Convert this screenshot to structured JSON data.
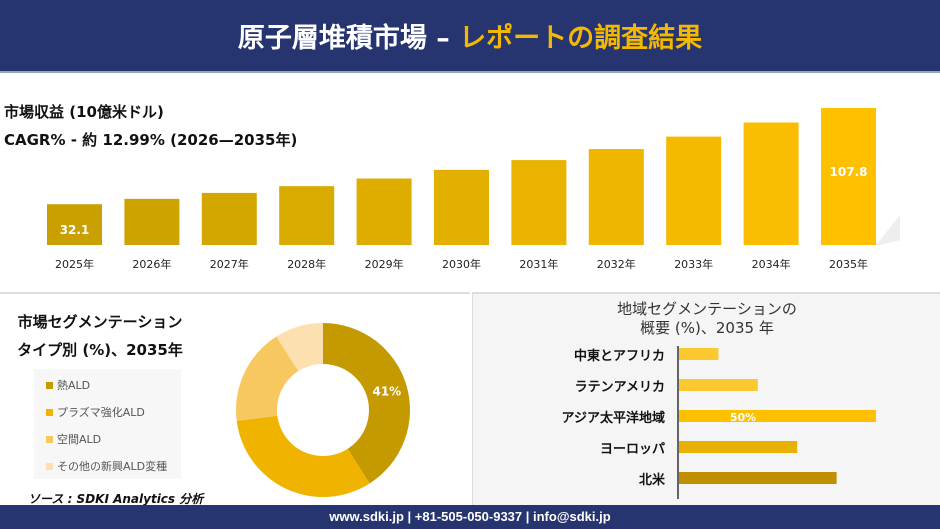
{
  "header": {
    "title_main": "原子層堆積市場 –",
    "title_accent": "レポートの調査結果"
  },
  "revenue": {
    "label": "市場収益 (10億米ドル)",
    "cagr": "CAGR% - 約 12.99% (2026—2035年)"
  },
  "chart_data": [
    {
      "type": "bar",
      "categories": [
        "2025年",
        "2026年",
        "2027年",
        "2028年",
        "2029年",
        "2030年",
        "2031年",
        "2032年",
        "2033年",
        "2034年",
        "2035年"
      ],
      "values": [
        32.1,
        36.3,
        41.0,
        46.3,
        52.3,
        59.1,
        66.8,
        75.5,
        85.3,
        96.4,
        107.8
      ],
      "data_labels": {
        "0": "32.1",
        "10": "107.8"
      },
      "ylim": [
        0,
        110
      ],
      "grid": false
    },
    {
      "type": "pie",
      "title": "市場セグメンテーション タイプ別 (%)、2035年",
      "title_line1": "市場セグメンテーション",
      "title_line2": "タイプ別 (%)、2035年",
      "categories": [
        "熱ALD",
        "プラズマ強化ALD",
        "空間ALD",
        "その他の新興ALD変種"
      ],
      "values": [
        41,
        32,
        18,
        9
      ],
      "data_labels": {
        "0": "41%"
      },
      "colors": [
        "#c49a00",
        "#f0b400",
        "#f8c860",
        "#fde0b0"
      ],
      "legend": "left"
    },
    {
      "type": "bar",
      "orientation": "horizontal",
      "title_line1": "地域セグメンテーションの",
      "title_line2": "概要 (%)、2035 年",
      "categories": [
        "中東とアフリカ",
        "ラテンアメリカ",
        "アジア太平洋地域",
        "ヨーロッパ",
        "北米"
      ],
      "values": [
        10,
        20,
        50,
        30,
        40
      ],
      "data_labels": {
        "2": "50%"
      },
      "colors": [
        "#fcc830",
        "#fcc830",
        "#ffc000",
        "#e8b000",
        "#bf8f00"
      ]
    }
  ],
  "source": "ソース : SDKI Analytics 分析",
  "footer": "www.sdki.jp | +81-505-050-9337 | info@sdki.jp"
}
